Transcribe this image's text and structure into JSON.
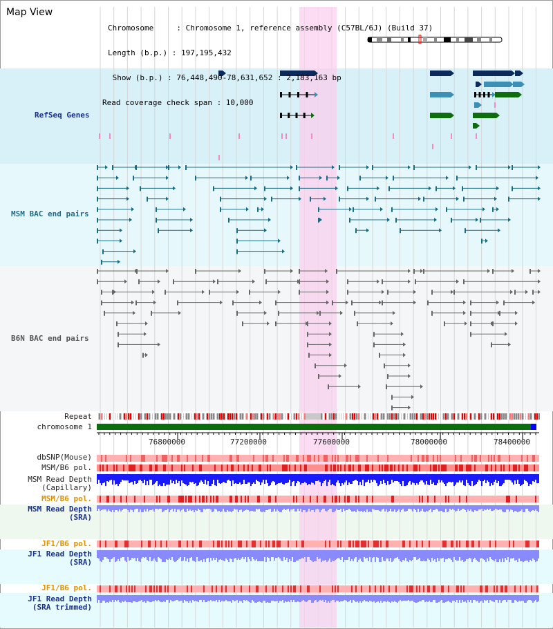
{
  "panel_title": "Map View",
  "info": {
    "chromosome": "Chromosome     : Chromosome 1, reference assembly (C57BL/6J) (Build 37)",
    "length": "Length (b.p.) : 197,195,432",
    "show": " Show (b.p.) : 76,448,490-78,631,652 : 2,183,163 bp",
    "coverage": "Read coverage check span : 10,000"
  },
  "tracks": {
    "refseq": "RefSeq Genes",
    "msm_bac": "MSM BAC end pairs",
    "b6n_bac": "B6N BAC end pairs",
    "repeat": "Repeat",
    "chromosome": "chromosome 1"
  },
  "axis_ticks": [
    "76800000",
    "77200000",
    "77600000",
    "78000000",
    "78400000"
  ],
  "lower_tracks": {
    "dbsnp": "dbSNP(Mouse)",
    "msm_b6_pol": "MSM/B6 pol.",
    "msm_depth_cap_1": "MSM Read Depth",
    "msm_depth_cap_2": "(Capillary)",
    "msm_b6_pol_sra": "MSM/B6 pol.",
    "msm_depth_sra_1": "MSM Read Depth",
    "msm_depth_sra_2": "(SRA)",
    "jf1_b6_pol": "JF1/B6 pol.",
    "jf1_depth_1": "JF1 Read Depth",
    "jf1_depth_2": "(SRA)",
    "jf1_b6_pol_trim": "JF1/B6 pol.",
    "jf1_trim_1": "JF1 Read Depth",
    "jf1_trim_2": "(SRA trimmed)"
  },
  "colors": {
    "refseq_bg": "#d8f0f8",
    "msm_bg": "#e6f8fb",
    "b6n_bg": "#f4f6f8",
    "highlight": "#f9d0ee",
    "gene_navy": "#0b2a5b",
    "gene_teal": "#3d8fb5",
    "gene_green": "#0e6b0e",
    "bac_teal": "#1a6c84",
    "bac_gray": "#666666",
    "chrom_green": "#0a6e0a",
    "depth_blue": "#1a1aff",
    "depth_light": "#8a8aff",
    "snp_red": "#ff9999",
    "label_navy": "#1a2f8a",
    "label_orange": "#e09000"
  }
}
